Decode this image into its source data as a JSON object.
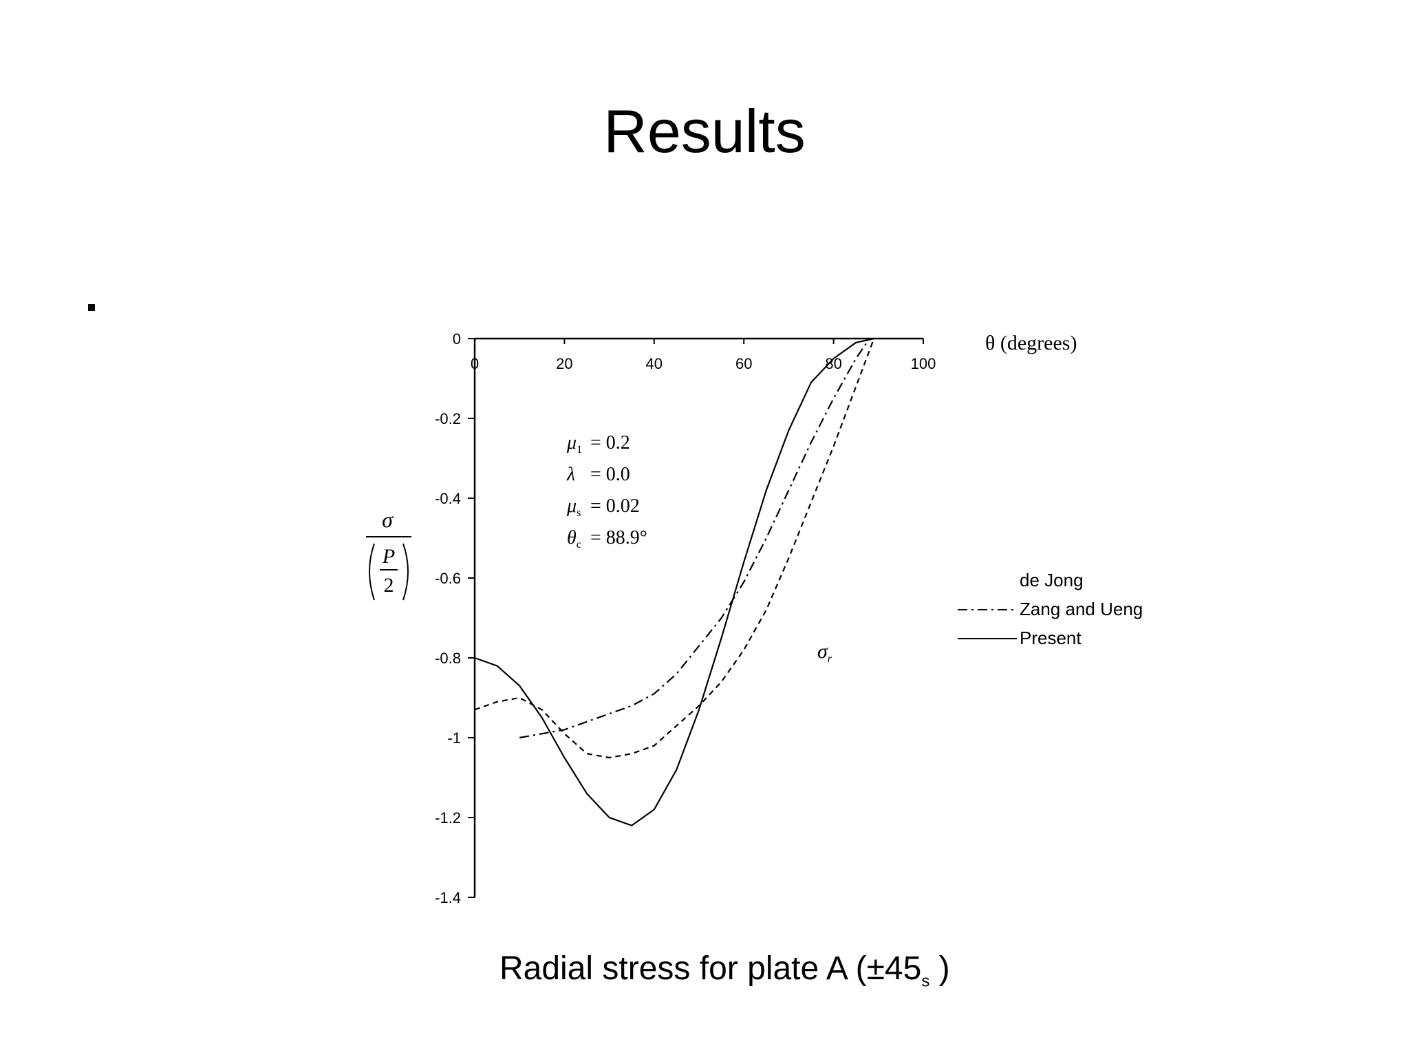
{
  "slide": {
    "title": "Results",
    "caption_main": "Radial stress for plate A (±45",
    "caption_sub": "s",
    "caption_end": " )"
  },
  "chart_data": {
    "type": "line",
    "x_axis_label": "θ (degrees)",
    "xlim": [
      0,
      100
    ],
    "ylim": [
      -1.4,
      0
    ],
    "x_ticks": [
      "0",
      "20",
      "40",
      "60",
      "80",
      "100"
    ],
    "y_ticks": [
      "0",
      "-0.2",
      "-0.4",
      "-0.6",
      "-0.8",
      "-1",
      "-1.2",
      "-1.4"
    ],
    "y_label": {
      "numerator": "σ",
      "fraction_top": "P",
      "fraction_bottom": "2"
    },
    "curve_label": "σ",
    "curve_label_sub": "r",
    "params": [
      {
        "sym": "μ",
        "sub": "1",
        "val": "0.2"
      },
      {
        "sym": "λ",
        "sub": "",
        "val": "0.0"
      },
      {
        "sym": "μ",
        "sub": "s",
        "val": "0.02"
      },
      {
        "sym": "θ",
        "sub": "c",
        "val": "88.9°"
      }
    ],
    "series": [
      {
        "name": "de Jong",
        "style": "dashed",
        "x": [
          0,
          5,
          10,
          15,
          20,
          25,
          30,
          35,
          40,
          45,
          50,
          55,
          60,
          65,
          70,
          75,
          80,
          85,
          89
        ],
        "y": [
          -0.93,
          -0.91,
          -0.9,
          -0.93,
          -0.99,
          -1.04,
          -1.05,
          -1.04,
          -1.02,
          -0.97,
          -0.92,
          -0.86,
          -0.78,
          -0.68,
          -0.55,
          -0.41,
          -0.27,
          -0.12,
          0
        ]
      },
      {
        "name": "Zang and Ueng",
        "style": "dashdot",
        "x": [
          10,
          15,
          20,
          25,
          30,
          35,
          40,
          45,
          50,
          55,
          60,
          65,
          70,
          75,
          80,
          85,
          88
        ],
        "y": [
          -1.0,
          -0.99,
          -0.98,
          -0.96,
          -0.94,
          -0.92,
          -0.89,
          -0.84,
          -0.77,
          -0.7,
          -0.61,
          -0.5,
          -0.38,
          -0.26,
          -0.15,
          -0.05,
          0
        ]
      },
      {
        "name": "Present",
        "style": "solid",
        "x": [
          0,
          5,
          10,
          15,
          20,
          25,
          30,
          35,
          40,
          45,
          50,
          55,
          60,
          65,
          70,
          75,
          80,
          85,
          89
        ],
        "y": [
          -0.8,
          -0.82,
          -0.87,
          -0.95,
          -1.05,
          -1.14,
          -1.2,
          -1.22,
          -1.18,
          -1.08,
          -0.93,
          -0.75,
          -0.56,
          -0.38,
          -0.23,
          -0.11,
          -0.05,
          -0.01,
          0
        ]
      }
    ],
    "legend": [
      {
        "label": "de Jong",
        "style": "none"
      },
      {
        "label": "Zang and Ueng",
        "style": "dashdot"
      },
      {
        "label": "Present",
        "style": "solid"
      }
    ],
    "legend_position": "right"
  }
}
